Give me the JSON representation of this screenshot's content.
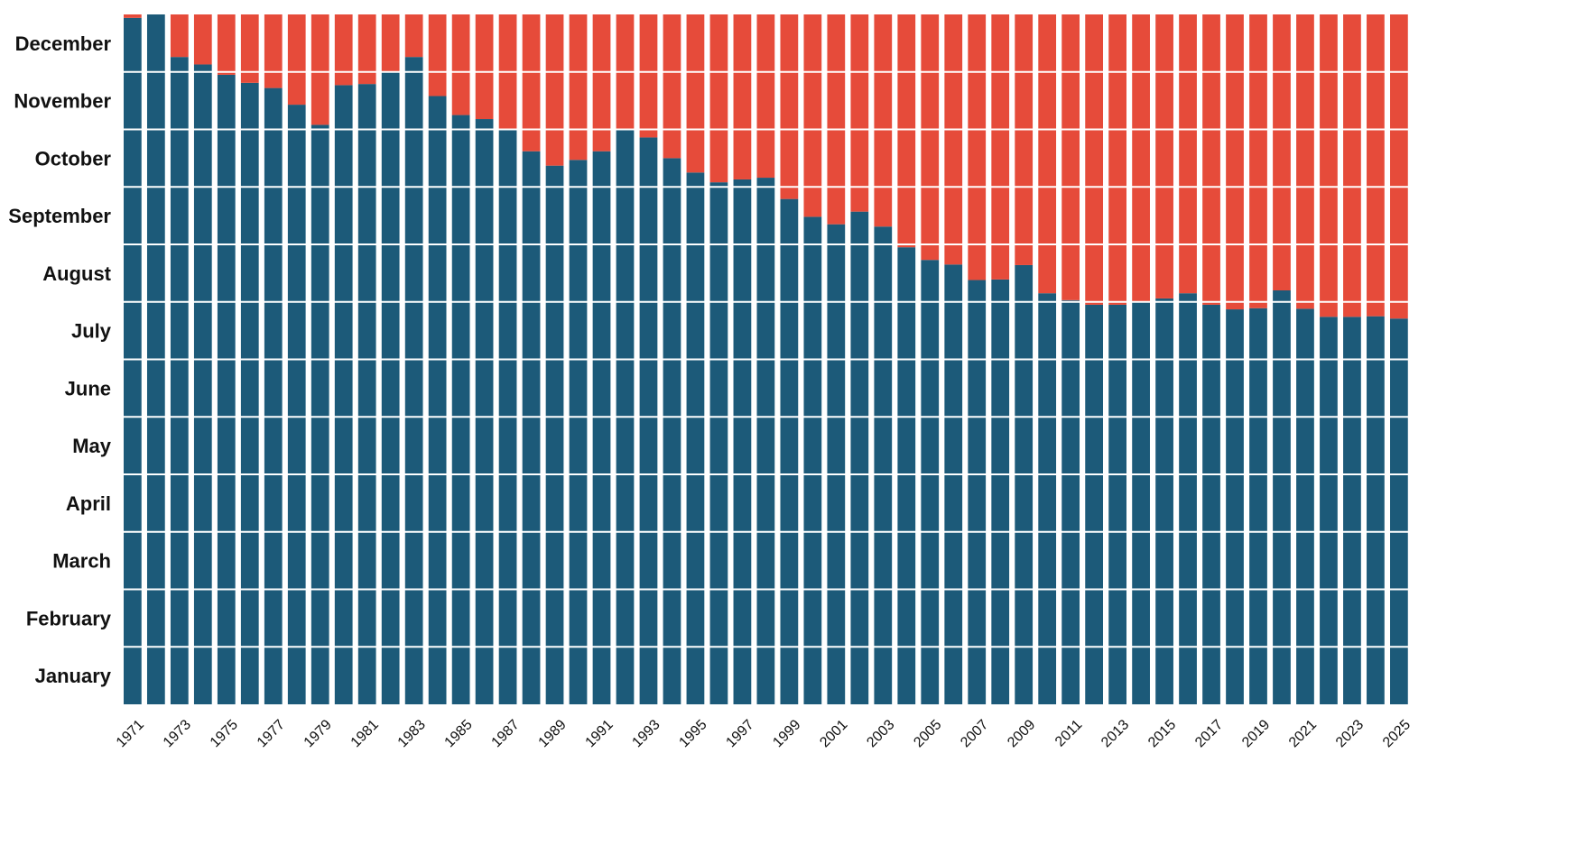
{
  "chart_data": {
    "type": "bar",
    "stacked": true,
    "title": "",
    "xlabel": "",
    "ylabel": "",
    "y_unit": "months of the year",
    "ylim": [
      0,
      12
    ],
    "y_tick_labels": [
      "January",
      "February",
      "March",
      "April",
      "May",
      "June",
      "July",
      "August",
      "September",
      "October",
      "November",
      "December"
    ],
    "x_tick_labels": [
      "1971",
      "1973",
      "1975",
      "1977",
      "1979",
      "1981",
      "1983",
      "1985",
      "1987",
      "1989",
      "1991",
      "1993",
      "1995",
      "1997",
      "1999",
      "2001",
      "2003",
      "2005",
      "2007",
      "2009",
      "2011",
      "2013",
      "2015",
      "2017",
      "2019",
      "2021",
      "2023",
      "2025"
    ],
    "categories": [
      1971,
      1972,
      1973,
      1974,
      1975,
      1976,
      1977,
      1978,
      1979,
      1980,
      1981,
      1982,
      1983,
      1984,
      1985,
      1986,
      1987,
      1988,
      1989,
      1990,
      1991,
      1992,
      1993,
      1994,
      1995,
      1996,
      1997,
      1998,
      1999,
      2000,
      2001,
      2002,
      2003,
      2004,
      2005,
      2006,
      2007,
      2008,
      2009,
      2010,
      2011,
      2012,
      2013,
      2014,
      2015,
      2016,
      2017,
      2018,
      2019,
      2020,
      2021,
      2022,
      2023,
      2024,
      2025
    ],
    "series": [
      {
        "color": "#1c5a79",
        "values": [
          11.94,
          12.0,
          11.26,
          11.13,
          10.95,
          10.81,
          10.72,
          10.43,
          10.08,
          10.77,
          10.79,
          11.0,
          11.26,
          10.58,
          10.25,
          10.18,
          10.0,
          9.62,
          9.37,
          9.47,
          9.62,
          9.99,
          9.86,
          9.5,
          9.25,
          9.08,
          9.13,
          9.16,
          8.79,
          8.48,
          8.35,
          8.57,
          8.31,
          7.95,
          7.73,
          7.65,
          7.38,
          7.39,
          7.64,
          7.15,
          7.03,
          6.95,
          6.95,
          7.01,
          7.06,
          7.15,
          6.95,
          6.87,
          6.89,
          7.2,
          6.88,
          6.74,
          6.74,
          6.75,
          6.71
        ]
      },
      {
        "color": "#e64b3a",
        "values": [
          0.06,
          0.0,
          0.74,
          0.87,
          1.05,
          1.19,
          1.28,
          1.57,
          1.92,
          1.23,
          1.21,
          1.0,
          0.74,
          1.42,
          1.75,
          1.82,
          2.0,
          2.38,
          2.63,
          2.53,
          2.38,
          2.01,
          2.14,
          2.5,
          2.75,
          2.92,
          2.87,
          2.84,
          3.21,
          3.52,
          3.65,
          3.43,
          3.69,
          4.05,
          4.27,
          4.35,
          4.62,
          4.61,
          4.36,
          4.85,
          4.97,
          5.05,
          5.05,
          4.99,
          4.94,
          4.85,
          5.05,
          5.13,
          5.11,
          4.8,
          5.12,
          5.26,
          5.26,
          5.25,
          5.29
        ]
      }
    ],
    "grid": true,
    "legend": "none"
  }
}
